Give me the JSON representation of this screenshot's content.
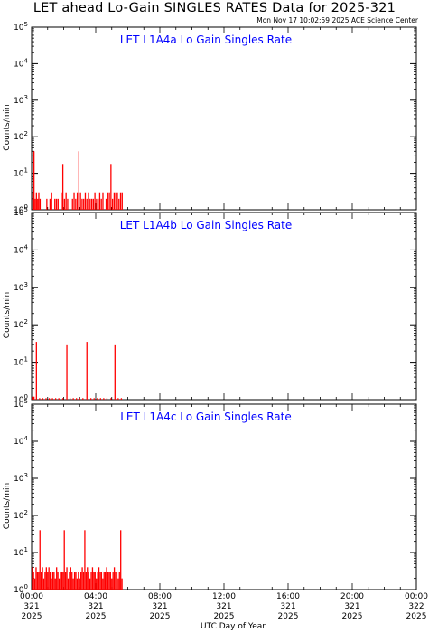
{
  "title": "LET ahead Lo-Gain SINGLES RATES Data for 2025-321",
  "timestamp": "Mon Nov 17 10:02:59 2025 ACE Science Center",
  "xlabel": "UTC Day of Year",
  "ylabel": "Counts/min",
  "colors": {
    "data": "#ff0000",
    "panel_title": "#0000ff",
    "axes": "#000000"
  },
  "chart_data": [
    {
      "type": "bar",
      "title": "LET L1A4a Lo Gain Singles Rate",
      "yscale": "log",
      "ylim": [
        1,
        100000
      ],
      "ytick_exponents": [
        0,
        1,
        2,
        3,
        4,
        5
      ],
      "xlim_hours": [
        0,
        24
      ],
      "x_hours": [
        0.08,
        0.15,
        0.22,
        0.3,
        0.38,
        0.45,
        0.53,
        0.6,
        0.7,
        0.78,
        0.85,
        0.95,
        1.05,
        1.15,
        1.25,
        1.35,
        1.45,
        1.55,
        1.65,
        1.75,
        1.85,
        1.95,
        2.05,
        2.15,
        2.25,
        2.35,
        2.45,
        2.55,
        2.65,
        2.75,
        2.85,
        2.95,
        3.05,
        3.15,
        3.25,
        3.35,
        3.45,
        3.55,
        3.65,
        3.75,
        3.85,
        3.95,
        4.05,
        4.15,
        4.25,
        4.35,
        4.45,
        4.55,
        4.65,
        4.75,
        4.85,
        4.95,
        5.05,
        5.15,
        5.25,
        5.35,
        5.45,
        5.55,
        5.65
      ],
      "values": [
        3,
        40,
        2,
        3,
        2,
        3,
        2,
        1,
        1,
        1,
        1,
        2,
        1,
        2,
        3,
        1,
        2,
        2,
        2,
        1,
        3,
        18,
        2,
        3,
        2,
        1,
        1,
        2,
        3,
        2,
        3,
        40,
        3,
        2,
        2,
        3,
        2,
        3,
        2,
        2,
        2,
        3,
        2,
        2,
        3,
        2,
        3,
        1,
        2,
        3,
        3,
        18,
        2,
        3,
        3,
        3,
        2,
        3,
        3
      ]
    },
    {
      "type": "bar",
      "title": "LET L1A4b Lo Gain Singles Rate",
      "yscale": "log",
      "ylim": [
        1,
        100000
      ],
      "ytick_exponents": [
        0,
        1,
        2,
        3,
        4,
        5
      ],
      "xlim_hours": [
        0,
        24
      ],
      "x_hours": [
        0.05,
        0.15,
        0.3,
        0.5,
        0.7,
        0.9,
        1.1,
        1.3,
        1.5,
        1.7,
        1.95,
        2.2,
        2.4,
        2.6,
        2.8,
        3.0,
        3.2,
        3.45,
        3.7,
        3.9,
        4.1,
        4.3,
        4.5,
        4.7,
        4.95,
        5.2,
        5.4,
        5.6
      ],
      "values": [
        1.2,
        1.2,
        35,
        1.1,
        1.1,
        1.1,
        1.1,
        1.1,
        1.1,
        1.1,
        1.1,
        30,
        1.1,
        1.1,
        1.1,
        1.1,
        1.1,
        35,
        1.1,
        1.1,
        1.1,
        1.1,
        1.1,
        1.1,
        1.1,
        30,
        1.1,
        1.1
      ]
    },
    {
      "type": "bar",
      "title": "LET L1A4c Lo Gain Singles Rate",
      "yscale": "log",
      "ylim": [
        1,
        100000
      ],
      "ytick_exponents": [
        0,
        1,
        2,
        3,
        4,
        5
      ],
      "xlim_hours": [
        0,
        24
      ],
      "x_hours": [
        0.05,
        0.12,
        0.2,
        0.28,
        0.36,
        0.44,
        0.52,
        0.6,
        0.68,
        0.76,
        0.84,
        0.92,
        1.0,
        1.08,
        1.16,
        1.24,
        1.32,
        1.4,
        1.48,
        1.56,
        1.64,
        1.72,
        1.8,
        1.88,
        1.96,
        2.04,
        2.12,
        2.2,
        2.28,
        2.36,
        2.44,
        2.52,
        2.6,
        2.68,
        2.76,
        2.84,
        2.92,
        3.0,
        3.08,
        3.16,
        3.24,
        3.32,
        3.4,
        3.48,
        3.56,
        3.64,
        3.72,
        3.8,
        3.88,
        3.96,
        4.04,
        4.12,
        4.2,
        4.28,
        4.36,
        4.44,
        4.52,
        4.6,
        4.68,
        4.76,
        4.84,
        4.92,
        5.0,
        5.08,
        5.16,
        5.24,
        5.32,
        5.4,
        5.48,
        5.56,
        5.64
      ],
      "values": [
        4,
        3,
        2,
        4,
        3,
        3,
        40,
        3,
        4,
        2,
        3,
        4,
        3,
        4,
        3,
        2,
        3,
        3,
        2,
        4,
        3,
        2,
        3,
        3,
        3,
        40,
        3,
        4,
        2,
        3,
        4,
        3,
        2,
        3,
        3,
        2,
        3,
        2,
        3,
        4,
        3,
        40,
        3,
        4,
        3,
        2,
        3,
        4,
        3,
        3,
        2,
        3,
        4,
        3,
        3,
        2,
        3,
        3,
        4,
        3,
        3,
        3,
        2,
        3,
        4,
        3,
        3,
        2,
        3,
        40,
        2
      ]
    }
  ],
  "xticks": [
    {
      "time": "00:00",
      "doy": "321",
      "year": "2025",
      "hour": 0
    },
    {
      "time": "04:00",
      "doy": "321",
      "year": "2025",
      "hour": 4
    },
    {
      "time": "08:00",
      "doy": "321",
      "year": "2025",
      "hour": 8
    },
    {
      "time": "12:00",
      "doy": "321",
      "year": "2025",
      "hour": 12
    },
    {
      "time": "16:00",
      "doy": "321",
      "year": "2025",
      "hour": 16
    },
    {
      "time": "20:00",
      "doy": "321",
      "year": "2025",
      "hour": 20
    },
    {
      "time": "00:00",
      "doy": "322",
      "year": "2025",
      "hour": 24
    }
  ]
}
